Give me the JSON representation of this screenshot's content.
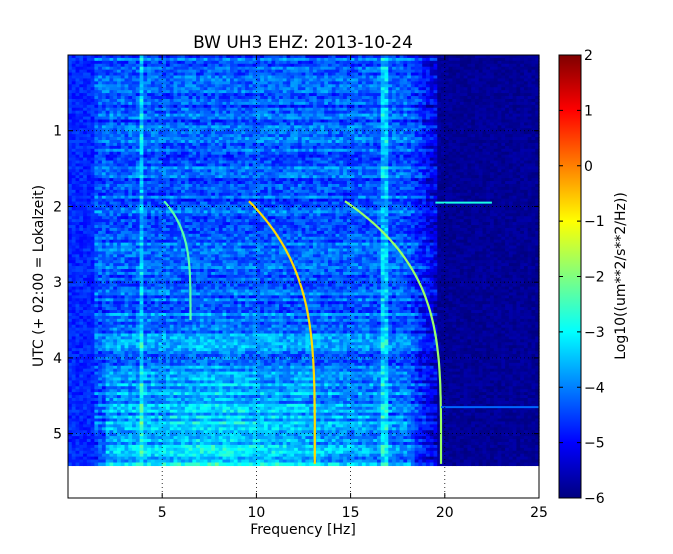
{
  "chart_data": {
    "type": "heatmap",
    "title": "BW UH3 EHZ: 2013-10-24",
    "xlabel": "Frequency [Hz]",
    "ylabel": "UTC (+ 02:00 = Lokalzeit)",
    "xlim": [
      0,
      25
    ],
    "ylim": [
      5.85,
      0
    ],
    "data_extent_y": [
      0,
      5.42
    ],
    "xticks": [
      5,
      10,
      15,
      20,
      25
    ],
    "xtick_labels": [
      "5",
      "10",
      "15",
      "20",
      "25"
    ],
    "yticks": [
      1,
      2,
      3,
      4,
      5
    ],
    "ytick_labels": [
      "1",
      "2",
      "3",
      "4",
      "5"
    ],
    "grid": true,
    "colorbar": {
      "label": "Log10((um**2/s**2/Hz))",
      "min": -6,
      "max": 2,
      "ticks": [
        2,
        1,
        0,
        -1,
        -2,
        -3,
        -4,
        -5,
        -6
      ],
      "tick_labels": [
        "2",
        "1",
        "0",
        "−1",
        "−2",
        "−3",
        "−4",
        "−5",
        "−6"
      ],
      "colormap": "jet"
    },
    "background_level": -4.3,
    "features": {
      "high_frequency_cutoff_hz": 19.5,
      "quiet_level_above_cutoff": -6,
      "low_frequency_band_hz": [
        0,
        1.4
      ],
      "spectral_lines_hz": [
        3.9,
        16.8
      ],
      "sweeps": [
        {
          "start_time_h": 1.93,
          "start_freq_hz": 5.1,
          "end_time_h": 3.5,
          "end_freq_hz": 6.5,
          "level": -2.3
        },
        {
          "start_time_h": 1.93,
          "start_freq_hz": 9.6,
          "end_time_h": 5.4,
          "end_freq_hz": 13.1,
          "level": -0.7
        },
        {
          "start_time_h": 1.93,
          "start_freq_hz": 14.7,
          "end_time_h": 5.4,
          "end_freq_hz": 19.8,
          "level": -1.8
        }
      ],
      "tail_events": [
        {
          "time_h": 1.95,
          "freq_range_hz": [
            19.5,
            22.5
          ],
          "level": -2.8
        },
        {
          "time_h": 4.65,
          "freq_range_hz": [
            19.8,
            25
          ],
          "level": -4.2
        }
      ]
    }
  }
}
